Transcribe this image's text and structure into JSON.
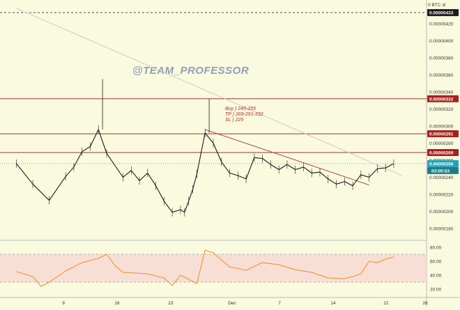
{
  "watermark": "@TEAM_PROFESSOR",
  "header": {
    "currency_label": "0   BTC  ⊘"
  },
  "colors": {
    "background": "#fafadf",
    "price_line": "#1a1a1a",
    "level_line": "#8b1a1a",
    "level_tag": "#a52020",
    "current_tag": "#20a4b8",
    "time_tag": "#1e7c8c",
    "rsi_line": "#f08c2c",
    "rsi_band": "#f5d6d2",
    "trendline_major": "#c9c9c9",
    "trendline_channel": "#a83a3a"
  },
  "annotations": [
    {
      "name": "buy",
      "text": "Buy  ) 245-255"
    },
    {
      "name": "tp",
      "text": "TP   ) 269-291-332"
    },
    {
      "name": "sl",
      "text": "SL   ) 225"
    }
  ],
  "price_tags": {
    "top": "0.00000433",
    "levels": [
      "0.00000332",
      "0.00000291",
      "0.00000269"
    ],
    "current": "0.00000256",
    "countdown": "03:00:53"
  },
  "chart_data": [
    {
      "type": "line",
      "name": "price",
      "x_ticks": [
        "9",
        "16",
        "23",
        "Dec",
        "7",
        "14",
        "21",
        "26"
      ],
      "y_ticks": [
        "0.00000420",
        "0.00000400",
        "0.00000380",
        "0.00000360",
        "0.00000340",
        "0.00000320",
        "0.00000300",
        "0.00000280",
        "0.00000260",
        "0.00000240",
        "0.00000220",
        "0.00000200",
        "0.00000180"
      ],
      "ylim": [
        1.7e-06,
        4.42e-06
      ],
      "horizontal_levels": [
        4.33e-06,
        3.32e-06,
        2.91e-06,
        2.69e-06
      ],
      "current_price": 2.56e-06,
      "x": [
        0,
        2,
        4,
        6,
        7,
        8,
        9,
        10,
        11,
        13,
        14,
        15,
        16,
        17,
        18,
        19,
        20,
        20.5,
        21,
        21.5,
        22,
        23,
        24,
        25,
        26,
        27,
        28,
        29,
        30,
        31,
        32,
        33,
        34,
        35,
        36,
        37,
        38,
        39,
        40,
        41,
        42,
        43,
        44,
        45,
        46
      ],
      "values": [
        2.56e-06,
        2.32e-06,
        2.13e-06,
        2.41e-06,
        2.52e-06,
        2.7e-06,
        2.76e-06,
        2.96e-06,
        2.68e-06,
        2.4e-06,
        2.48e-06,
        2.36e-06,
        2.45e-06,
        2.3e-06,
        2.12e-06,
        1.99e-06,
        2.02e-06,
        1.99e-06,
        2.12e-06,
        2.26e-06,
        2.44e-06,
        2.92e-06,
        2.8e-06,
        2.58e-06,
        2.45e-06,
        2.42e-06,
        2.38e-06,
        2.63e-06,
        2.62e-06,
        2.55e-06,
        2.49e-06,
        2.55e-06,
        2.49e-06,
        2.52e-06,
        2.45e-06,
        2.46e-06,
        2.38e-06,
        2.32e-06,
        2.35e-06,
        2.3e-06,
        2.43e-06,
        2.4e-06,
        2.5e-06,
        2.51e-06,
        2.56e-06
      ],
      "highs": [
        {
          "x": 10.5,
          "value": 3.55e-06
        },
        {
          "x": 23.5,
          "value": 3.32e-06
        }
      ],
      "trendlines": [
        {
          "name": "major-descending",
          "x": [
            0,
            47
          ],
          "values": [
            4.38e-06,
            2.42e-06
          ]
        },
        {
          "name": "channel-descending",
          "x": [
            23,
            43
          ],
          "values": [
            2.96e-06,
            2.31e-06
          ]
        }
      ]
    },
    {
      "type": "line",
      "name": "rsi",
      "y_ticks": [
        "80.00",
        "60.00",
        "40.00",
        "20.00"
      ],
      "ylim": [
        15,
        85
      ],
      "band": [
        30,
        70
      ],
      "x": [
        0,
        2,
        3,
        4,
        6,
        8,
        10,
        11,
        12,
        13,
        16,
        18,
        19,
        20,
        21,
        22,
        23,
        24,
        26,
        28,
        30,
        32,
        34,
        36,
        38,
        40,
        41,
        42,
        43,
        44,
        45,
        46
      ],
      "values": [
        45,
        38,
        24,
        30,
        46,
        58,
        64,
        70,
        54,
        44,
        42,
        36,
        25,
        40,
        34,
        28,
        76,
        72,
        52,
        47,
        58,
        55,
        48,
        44,
        36,
        35,
        38,
        42,
        60,
        58,
        63,
        66
      ]
    }
  ]
}
